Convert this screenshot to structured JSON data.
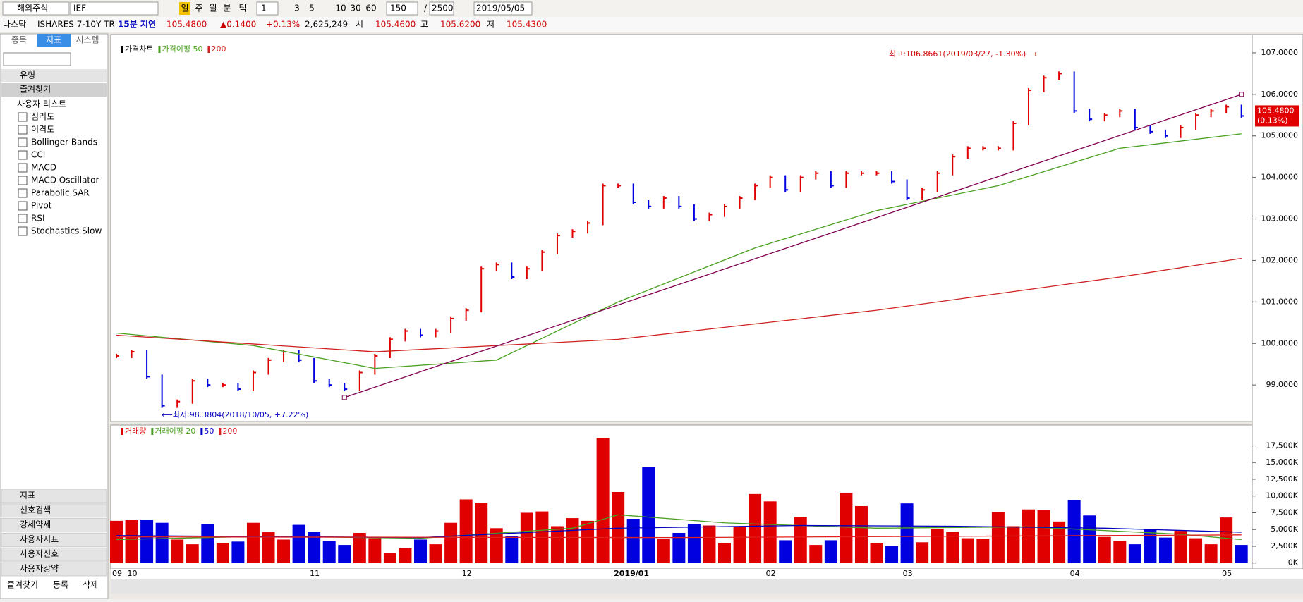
{
  "toolbar": {
    "market": "해외주식",
    "symbol": "IEF",
    "periods": [
      "주",
      "월",
      "분",
      "틱"
    ],
    "active_period": "일",
    "unit": "1",
    "intervals": [
      "3",
      "5",
      "10",
      "30",
      "60"
    ],
    "count": "150",
    "separator": "/",
    "max_count": "2500",
    "date": "2019/05/05"
  },
  "quote": {
    "exchange": "나스닥",
    "name": "ISHARES 7-10Y TR",
    "delay": "15분 지연",
    "price": "105.4800",
    "change": "▲0.1400",
    "change_pct": "+0.13%",
    "volume": "2,625,249",
    "open_label": "시",
    "open": "105.4600",
    "high_label": "고",
    "high": "105.6200",
    "low_label": "저",
    "low": "105.4300"
  },
  "sidebar": {
    "tabs": [
      "종목",
      "지표",
      "시스템"
    ],
    "active_tab": "지표",
    "groups": [
      "유형",
      "즐겨찾기"
    ],
    "list_title": "사용자 리스트",
    "items": [
      "심리도",
      "이격도",
      "Bollinger Bands",
      "CCI",
      "MACD",
      "MACD Oscillator",
      "Parabolic SAR",
      "Pivot",
      "RSI",
      "Stochastics Slow"
    ],
    "sections": [
      "지표",
      "신호검색",
      "강세약세",
      "사용자지표",
      "사용자신호",
      "사용자강약"
    ],
    "buttons": [
      "즐겨찾기",
      "등록",
      "삭제"
    ]
  },
  "chart_data": [
    {
      "type": "ohlc",
      "ylim": [
        98.12,
        107.44
      ],
      "yticks": [
        {
          "value": 99,
          "label": "99.0000"
        },
        {
          "value": 100,
          "label": "100.0000"
        },
        {
          "value": 101,
          "label": "101.0000"
        },
        {
          "value": 102,
          "label": "102.0000"
        },
        {
          "value": 103,
          "label": "103.0000"
        },
        {
          "value": 104,
          "label": "104.0000"
        },
        {
          "value": 105,
          "label": "105.0000"
        },
        {
          "value": 106,
          "label": "106.0000"
        },
        {
          "value": 107,
          "label": "107.0000"
        }
      ],
      "series": [
        {
          "name": "가격차트",
          "color": "#000000",
          "up_color": "#e00000",
          "down_color": "#0000e0",
          "values": [
            99.7,
            99.8,
            99.2,
            98.5,
            98.6,
            99.1,
            99.0,
            99.0,
            98.9,
            99.3,
            99.6,
            99.8,
            99.6,
            99.1,
            99.0,
            98.9,
            99.3,
            99.7,
            100.1,
            100.3,
            100.2,
            100.3,
            100.6,
            100.8,
            101.8,
            101.9,
            101.6,
            101.8,
            102.2,
            102.6,
            102.7,
            102.9,
            103.8,
            103.8,
            103.4,
            103.3,
            103.5,
            103.3,
            103.0,
            103.1,
            103.3,
            103.5,
            103.8,
            104.0,
            103.7,
            104.0,
            104.1,
            103.8,
            104.1,
            104.1,
            104.1,
            103.9,
            103.5,
            103.7,
            104.1,
            104.5,
            104.7,
            104.7,
            104.7,
            105.3,
            106.1,
            106.4,
            106.5,
            105.6,
            105.4,
            105.5,
            105.6,
            105.2,
            105.1,
            105.0,
            105.2,
            105.5,
            105.6,
            105.7,
            105.48
          ]
        },
        {
          "name": "가격이평 50",
          "color": "#4aa020",
          "x": [
            0,
            9,
            17,
            25,
            33,
            42,
            50,
            58,
            66,
            74
          ],
          "values": [
            100.25,
            99.95,
            99.4,
            99.6,
            101.0,
            102.3,
            103.2,
            103.8,
            104.7,
            105.05
          ]
        },
        {
          "name": "200",
          "color": "#d02020",
          "x": [
            0,
            17,
            33,
            50,
            66,
            74
          ],
          "values": [
            100.2,
            99.8,
            100.1,
            100.8,
            101.6,
            102.05
          ]
        }
      ],
      "trendline": {
        "color": "#800050",
        "x": [
          15,
          74
        ],
        "values": [
          98.7,
          106.0
        ]
      },
      "annotations": {
        "high": "최고:106.8661(2019/03/27, -1.30%)⟶",
        "low": "⟵최저:98.3804(2018/10/05, +7.22%)"
      },
      "last_label": [
        "105.4800",
        "(0.13%)"
      ]
    },
    {
      "type": "bar",
      "ylim": [
        -870,
        20600
      ],
      "yticks": [
        {
          "value": 0,
          "label": "0K"
        },
        {
          "value": 2500,
          "label": "2,500K"
        },
        {
          "value": 5000,
          "label": "5,000K"
        },
        {
          "value": 7500,
          "label": "7,500K"
        },
        {
          "value": 10000,
          "label": "10,000K"
        },
        {
          "value": 12500,
          "label": "12,500K"
        },
        {
          "value": 15000,
          "label": "15,000K"
        },
        {
          "value": 17500,
          "label": "17,500K"
        }
      ],
      "categories": [
        "09",
        "10",
        null,
        null,
        null,
        null,
        null,
        null,
        null,
        null,
        null,
        null,
        null,
        "11",
        null,
        null,
        null,
        null,
        null,
        null,
        null,
        null,
        null,
        "12",
        null,
        null,
        null,
        null,
        null,
        null,
        null,
        null,
        null,
        "2019/01",
        null,
        null,
        null,
        null,
        null,
        null,
        null,
        null,
        null,
        "02",
        null,
        null,
        null,
        null,
        null,
        null,
        null,
        null,
        "03",
        null,
        null,
        null,
        null,
        null,
        null,
        null,
        null,
        null,
        null,
        "04",
        null,
        null,
        null,
        null,
        null,
        null,
        null,
        null,
        null,
        "05",
        null
      ],
      "series": [
        {
          "name": "거래량",
          "color": "#e00000",
          "values": [
            6300,
            6400,
            6500,
            6000,
            3500,
            2800,
            5800,
            3000,
            3200,
            6000,
            4600,
            3500,
            5700,
            4700,
            3300,
            2700,
            4500,
            3700,
            1500,
            2200,
            3500,
            2800,
            6000,
            9500,
            9000,
            5200,
            4000,
            7500,
            7700,
            5500,
            6700,
            6300,
            18700,
            10600,
            6600,
            14300,
            3600,
            4500,
            5800,
            5600,
            3000,
            5400,
            10300,
            9200,
            3400,
            6900,
            2700,
            3400,
            10500,
            8500,
            3000,
            2500,
            8900,
            3100,
            5100,
            4700,
            3700,
            3600,
            7600,
            5500,
            8000,
            7900,
            6200,
            9400,
            7100,
            3900,
            3300,
            2800,
            5000,
            3800,
            4800,
            3700,
            2800,
            6800,
            2700
          ]
        },
        {
          "name": "거래이평 20",
          "color": "#4aa020",
          "x": [
            0,
            10,
            20,
            30,
            33,
            40,
            50,
            60,
            70,
            74
          ],
          "values": [
            3500,
            4000,
            3700,
            5200,
            7200,
            6000,
            5200,
            5400,
            4300,
            3500
          ]
        },
        {
          "name": "50",
          "color": "#0000c0",
          "x": [
            0,
            20,
            33,
            45,
            55,
            65,
            74
          ],
          "values": [
            4100,
            3800,
            5200,
            5600,
            5500,
            5200,
            4600
          ]
        },
        {
          "name": "200",
          "color": "#e02020",
          "x": [
            0,
            37,
            74
          ],
          "values": [
            3900,
            3800,
            4200
          ]
        }
      ]
    }
  ]
}
